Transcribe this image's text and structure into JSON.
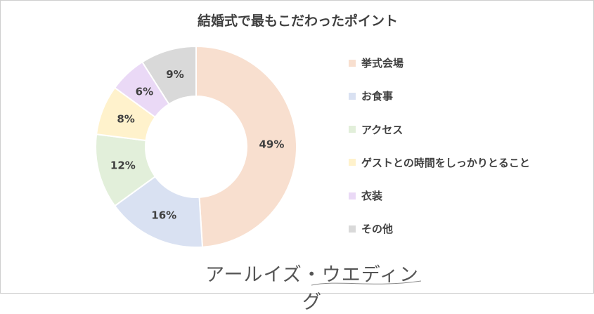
{
  "chart_data": {
    "type": "pie",
    "title": "結婚式で最もこだわったポイント",
    "categories": [
      "挙式会場",
      "お食事",
      "アクセス",
      "ゲストとの時間をしっかりとること",
      "衣装",
      "その他"
    ],
    "values": [
      49,
      16,
      12,
      8,
      6,
      9
    ],
    "labels": [
      "49%",
      "16%",
      "12%",
      "8%",
      "6%",
      "9%"
    ],
    "colors": [
      "#f8dfcf",
      "#d9e1f2",
      "#e2efda",
      "#fff2cc",
      "#ead9f6",
      "#d9d9d9"
    ],
    "legend_position": "right",
    "donut": true
  },
  "watermark": "アールイズ・ウエディング"
}
